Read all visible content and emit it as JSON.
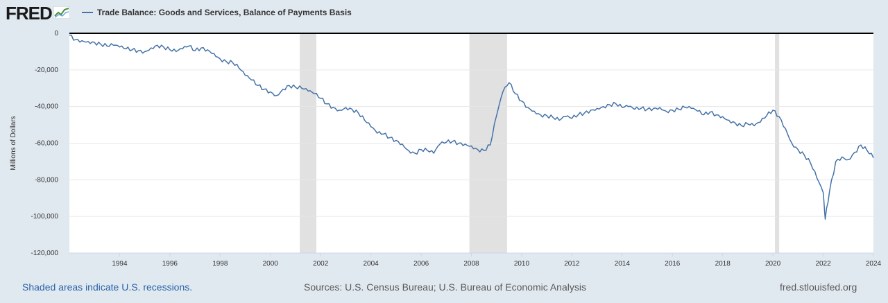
{
  "brand": {
    "logo_text": "FRED",
    "logo_icon": "line-chart-icon"
  },
  "colors": {
    "page_background": "#e1e9f0",
    "plot_background": "#ffffff",
    "series": "#4572a7",
    "recession_shade": "#e1e1e1",
    "zero_line": "#000000",
    "gridline": "#e6e6e6",
    "link": "#2a63a8"
  },
  "footer": {
    "recession_note": "Shaded areas indicate U.S. recessions.",
    "sources": "Sources: U.S. Census Bureau; U.S. Bureau of Economic Analysis",
    "site": "fred.stlouisfed.org"
  },
  "chart_data": {
    "type": "line",
    "title": "",
    "legend": "top-left",
    "ylabel": "Millions of Dollars",
    "xlabel": "",
    "xlim": [
      1992.0,
      2024.0
    ],
    "ylim": [
      -120000,
      0
    ],
    "grid": true,
    "x_ticks": [
      1994,
      1996,
      1998,
      2000,
      2002,
      2004,
      2006,
      2008,
      2010,
      2012,
      2014,
      2016,
      2018,
      2020,
      2022,
      2024
    ],
    "y_ticks": [
      0,
      -20000,
      -40000,
      -60000,
      -80000,
      -100000,
      -120000
    ],
    "y_tick_labels": [
      "0",
      "-20,000",
      "-40,000",
      "-60,000",
      "-80,000",
      "-100,000",
      "-120,000"
    ],
    "recessions": [
      [
        2001.17,
        2001.83
      ],
      [
        2007.92,
        2009.42
      ],
      [
        2020.08,
        2020.25
      ]
    ],
    "series": [
      {
        "name": "Trade Balance: Goods and Services, Balance of Payments Basis",
        "x": [
          1992.0,
          1992.25,
          1992.5,
          1992.75,
          1993.0,
          1993.25,
          1993.5,
          1993.75,
          1994.0,
          1994.25,
          1994.5,
          1994.75,
          1995.0,
          1995.25,
          1995.5,
          1995.75,
          1996.0,
          1996.25,
          1996.5,
          1996.75,
          1997.0,
          1997.25,
          1997.5,
          1997.75,
          1998.0,
          1998.25,
          1998.5,
          1998.75,
          1999.0,
          1999.25,
          1999.5,
          1999.75,
          2000.0,
          2000.25,
          2000.5,
          2000.75,
          2001.0,
          2001.25,
          2001.5,
          2001.75,
          2002.0,
          2002.25,
          2002.5,
          2002.75,
          2003.0,
          2003.25,
          2003.5,
          2003.75,
          2004.0,
          2004.25,
          2004.5,
          2004.75,
          2005.0,
          2005.25,
          2005.5,
          2005.75,
          2006.0,
          2006.25,
          2006.5,
          2006.75,
          2007.0,
          2007.25,
          2007.5,
          2007.75,
          2008.0,
          2008.25,
          2008.5,
          2008.75,
          2009.0,
          2009.25,
          2009.5,
          2009.75,
          2010.0,
          2010.25,
          2010.5,
          2010.75,
          2011.0,
          2011.25,
          2011.5,
          2011.75,
          2012.0,
          2012.25,
          2012.5,
          2012.75,
          2013.0,
          2013.25,
          2013.5,
          2013.75,
          2014.0,
          2014.25,
          2014.5,
          2014.75,
          2015.0,
          2015.25,
          2015.5,
          2015.75,
          2016.0,
          2016.25,
          2016.5,
          2016.75,
          2017.0,
          2017.25,
          2017.5,
          2017.75,
          2018.0,
          2018.25,
          2018.5,
          2018.75,
          2019.0,
          2019.25,
          2019.5,
          2019.75,
          2020.0,
          2020.25,
          2020.5,
          2020.75,
          2021.0,
          2021.25,
          2021.5,
          2021.75,
          2022.0,
          2022.08,
          2022.25,
          2022.5,
          2022.75,
          2023.0,
          2023.25,
          2023.5,
          2023.75,
          2024.0
        ],
        "values": [
          -1000,
          -3500,
          -4000,
          -4500,
          -5000,
          -6000,
          -7000,
          -6500,
          -7500,
          -8500,
          -9000,
          -9500,
          -10000,
          -8000,
          -6500,
          -7500,
          -9000,
          -10000,
          -8500,
          -7000,
          -9500,
          -8000,
          -9000,
          -11000,
          -14000,
          -15500,
          -16000,
          -19000,
          -23000,
          -25500,
          -28500,
          -30500,
          -32000,
          -34000,
          -30500,
          -28500,
          -29500,
          -30000,
          -31500,
          -33000,
          -35500,
          -38500,
          -40500,
          -42000,
          -40500,
          -41500,
          -43500,
          -47500,
          -51000,
          -54500,
          -55000,
          -57000,
          -58500,
          -60500,
          -64000,
          -65500,
          -63500,
          -64000,
          -65500,
          -60500,
          -59500,
          -59000,
          -60000,
          -60500,
          -61500,
          -63500,
          -64000,
          -61000,
          -45000,
          -32000,
          -27000,
          -33000,
          -37000,
          -40500,
          -42500,
          -44500,
          -45000,
          -46000,
          -47500,
          -45500,
          -46500,
          -44500,
          -43500,
          -42000,
          -41000,
          -40000,
          -39000,
          -38500,
          -40500,
          -40000,
          -41500,
          -41000,
          -41500,
          -41000,
          -40500,
          -42500,
          -42000,
          -41500,
          -40500,
          -41000,
          -42500,
          -44500,
          -43000,
          -44500,
          -45500,
          -47500,
          -49000,
          -50500,
          -49500,
          -50500,
          -48500,
          -45000,
          -42000,
          -45500,
          -52000,
          -60000,
          -63500,
          -66500,
          -71000,
          -79000,
          -87000,
          -101500,
          -86500,
          -70000,
          -67500,
          -69000,
          -65000,
          -61000,
          -64000,
          -68000
        ]
      }
    ]
  }
}
